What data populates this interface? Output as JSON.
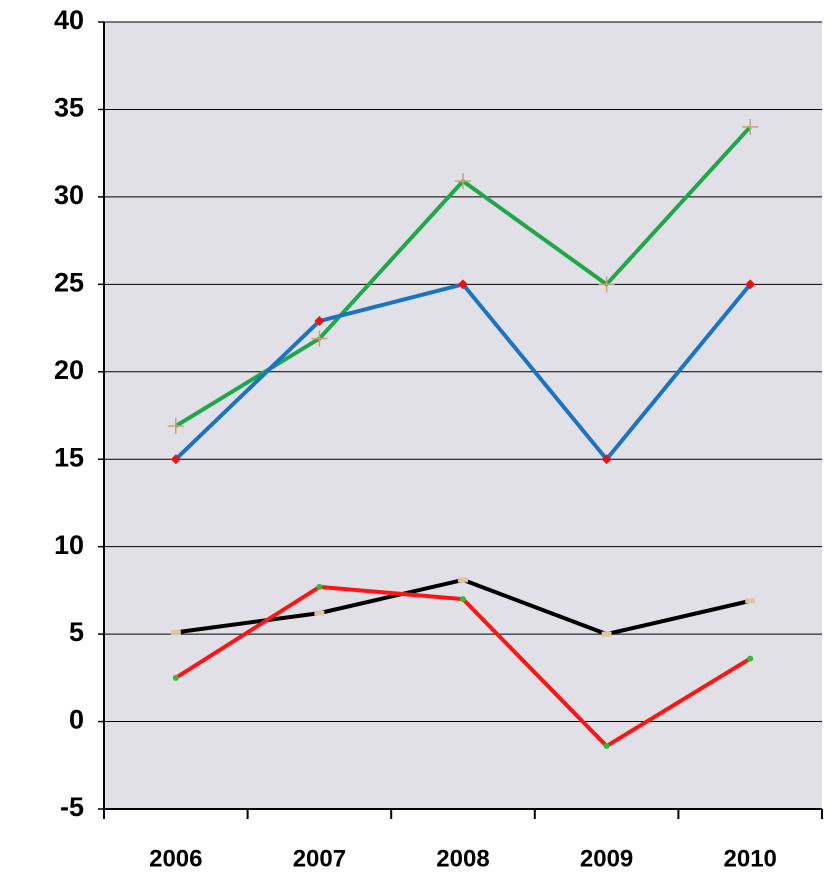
{
  "chart_data": {
    "type": "line",
    "categories": [
      "2006",
      "2007",
      "2008",
      "2009",
      "2010"
    ],
    "series": [
      {
        "color": "#1fa84a",
        "marker_color": "#c8a27a",
        "marker": "plus",
        "values": [
          16.9,
          21.9,
          30.9,
          25,
          34
        ]
      },
      {
        "color": "#1a74c4",
        "marker_color": "#ee1111",
        "marker": "diamond",
        "values": [
          15,
          22.9,
          25,
          15,
          25
        ]
      },
      {
        "color": "#000000",
        "marker_color": "#d8c9a0",
        "marker": "rect",
        "values": [
          5.1,
          6.2,
          8.1,
          5,
          6.9
        ]
      },
      {
        "color": "#ff1414",
        "marker_color": "#33bb33",
        "marker": "dot",
        "values": [
          2.5,
          7.7,
          7,
          -1.4,
          3.6
        ]
      }
    ],
    "ylim": [
      -5,
      40
    ],
    "yticks": [
      -5,
      0,
      5,
      10,
      15,
      20,
      25,
      30,
      35,
      40
    ],
    "grid": true,
    "background": "#e0e0e6"
  }
}
